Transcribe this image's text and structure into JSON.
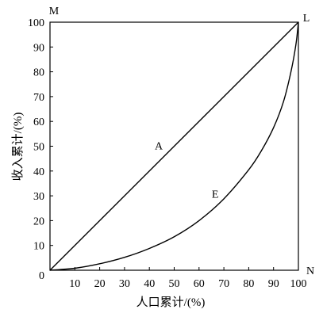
{
  "chart_data": {
    "type": "line",
    "title": "",
    "xlabel": "人口累计/(%)",
    "ylabel": "收入累计/(%)",
    "xlim": [
      0,
      100
    ],
    "ylim": [
      0,
      100
    ],
    "grid": false,
    "x_tick_labels": [
      "10",
      "20",
      "30",
      "40",
      "50",
      "60",
      "70",
      "80",
      "90",
      "100"
    ],
    "y_tick_labels": [
      "0",
      "10",
      "20",
      "30",
      "40",
      "50",
      "60",
      "70",
      "80",
      "90",
      "100"
    ],
    "series": [
      {
        "name": "A",
        "color": "#000000",
        "x": [
          0,
          100
        ],
        "y": [
          0,
          100
        ]
      },
      {
        "name": "E",
        "color": "#000000",
        "x": [
          0,
          10,
          20,
          30,
          40,
          50,
          60,
          70,
          80,
          85,
          90,
          94,
          97,
          99,
          100
        ],
        "y": [
          0,
          0.8,
          2.6,
          5.2,
          8.8,
          13.5,
          20,
          28.8,
          40.5,
          48,
          57.5,
          68,
          80,
          91,
          100
        ]
      }
    ],
    "annotations": [
      {
        "text": "M",
        "position": "top-left"
      },
      {
        "text": "L",
        "position": "top-right"
      },
      {
        "text": "N",
        "position": "bottom-right"
      }
    ]
  }
}
